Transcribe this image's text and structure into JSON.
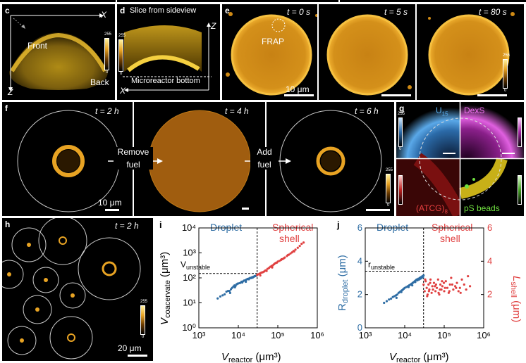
{
  "panels": {
    "c": {
      "label": "c",
      "axis_x": "X",
      "axis_z": "Z",
      "front": "Front",
      "back": "Back",
      "cbar_max": "255",
      "cbar_min": "0"
    },
    "d": {
      "label": "d",
      "title": "Slice from sideview",
      "axis_z": "Z",
      "axis_x": "X",
      "bottom_label": "Microreactor bottom",
      "cbar_max": "255",
      "cbar_min": "0"
    },
    "e": {
      "label": "e",
      "t0": "t = 0 s",
      "t5": "t = 5 s",
      "t80": "t = 80 s",
      "frap": "FRAP",
      "scale": "10 μm",
      "cbar_max": "255",
      "cbar_min": "0"
    },
    "f": {
      "label": "f",
      "t2": "t = 2 h",
      "t4": "t = 4 h",
      "t6": "t = 6 h",
      "arrow1_l1": "Remove",
      "arrow1_l2": "fuel",
      "arrow2_l1": "Add",
      "arrow2_l2": "fuel",
      "scale": "10 μm",
      "cbar_max": "255",
      "cbar_min": "0"
    },
    "g": {
      "label": "g",
      "u15": "U",
      "u15_sub": "15",
      "dexs": "DexS",
      "atcg": "(ATCG)",
      "atcg_sub": "8",
      "beads": "pS beads",
      "cbar_max": "255",
      "cbar_min": "0"
    },
    "h": {
      "label": "h",
      "time": "t = 2 h",
      "scale": "20 μm",
      "cbar_max": "255",
      "cbar_min": "0"
    }
  },
  "chart_data": [
    {
      "panel": "i",
      "type": "scatter",
      "xlabel": "V_reactor (μm³)",
      "ylabel": "V_coacervate (μm³)",
      "xscale": "log",
      "yscale": "log",
      "xlim": [
        1000,
        1000000
      ],
      "ylim": [
        1,
        10000
      ],
      "x_ticks": [
        "10³",
        "10⁴",
        "10⁵",
        "10⁶"
      ],
      "y_ticks": [
        "10⁰",
        "10¹",
        "10²",
        "10³",
        "10⁴"
      ],
      "annotation_unstable": "V_unstable",
      "threshold_x": 30000,
      "threshold_y": 150,
      "series": [
        {
          "name": "Droplet",
          "color": "#2e6da4",
          "x": [
            3000,
            3500,
            4000,
            4500,
            5000,
            5500,
            6000,
            6500,
            7000,
            7500,
            8000,
            8500,
            9000,
            9500,
            10000,
            11000,
            12000,
            13000,
            14000,
            15000,
            16000,
            17000,
            18000,
            19000,
            20000,
            22000,
            24000,
            26000,
            28000,
            30000,
            6200,
            8200,
            12500,
            15500,
            18500,
            21000,
            23000,
            25000,
            27000,
            29000
          ],
          "y": [
            15,
            18,
            20,
            22,
            28,
            30,
            30,
            35,
            40,
            45,
            50,
            48,
            55,
            58,
            60,
            62,
            70,
            72,
            78,
            80,
            85,
            90,
            92,
            95,
            100,
            105,
            110,
            118,
            122,
            130,
            25,
            42,
            65,
            70,
            88,
            98,
            102,
            112,
            118,
            125
          ]
        },
        {
          "name": "Spherical shell",
          "color": "#e04040",
          "x": [
            30000,
            32000,
            35000,
            38000,
            40000,
            42000,
            45000,
            48000,
            50000,
            55000,
            60000,
            65000,
            70000,
            75000,
            80000,
            85000,
            90000,
            100000,
            110000,
            120000,
            130000,
            140000,
            150000,
            170000,
            190000,
            210000,
            230000,
            250000,
            280000,
            320000,
            360000,
            400000,
            450000,
            36000,
            52000,
            72000,
            95000,
            125000,
            180000,
            260000
          ],
          "y": [
            130,
            140,
            150,
            160,
            165,
            170,
            180,
            195,
            200,
            230,
            250,
            280,
            300,
            320,
            350,
            380,
            400,
            450,
            480,
            520,
            560,
            600,
            650,
            750,
            850,
            950,
            1050,
            1200,
            1350,
            1600,
            1900,
            2300,
            2600,
            125,
            190,
            260,
            410,
            560,
            820,
            1150
          ]
        }
      ]
    },
    {
      "panel": "j",
      "type": "scatter",
      "xlabel": "V_reactor (μm³)",
      "ylabel_left": "R_droplet (μm)",
      "ylabel_right": "L_shell (μm)",
      "xscale": "log",
      "xlim": [
        1000,
        1000000
      ],
      "ylim": [
        0,
        6
      ],
      "x_ticks": [
        "10³",
        "10⁴",
        "10⁵",
        "10⁶"
      ],
      "y_ticks": [
        "0",
        "2",
        "4",
        "6"
      ],
      "annotation_unstable": "r_unstable",
      "threshold_x": 30000,
      "threshold_y": 3.4,
      "series": [
        {
          "name": "Droplet",
          "color": "#2e6da4",
          "x": [
            3000,
            3500,
            4000,
            4500,
            5000,
            5500,
            6000,
            6500,
            7000,
            7500,
            8000,
            8500,
            9000,
            9500,
            10000,
            11000,
            12000,
            13000,
            14000,
            15000,
            16000,
            17000,
            18000,
            19000,
            20000,
            22000,
            24000,
            26000,
            28000,
            30000,
            6200,
            8200,
            12500,
            15500,
            18500,
            21000,
            23000,
            25000,
            27000,
            29000
          ],
          "y": [
            1.5,
            1.6,
            1.7,
            1.75,
            1.85,
            1.9,
            1.95,
            2.0,
            2.1,
            2.15,
            2.2,
            2.25,
            2.3,
            2.35,
            2.4,
            2.45,
            2.5,
            2.55,
            2.6,
            2.65,
            2.7,
            2.75,
            2.8,
            2.85,
            2.9,
            2.95,
            3.0,
            3.05,
            3.1,
            3.15,
            1.8,
            2.15,
            2.45,
            2.55,
            2.75,
            2.85,
            2.9,
            2.95,
            3.0,
            3.05
          ]
        },
        {
          "name": "Spherical shell",
          "color": "#e04040",
          "x": [
            30000,
            32000,
            34000,
            36000,
            38000,
            40000,
            42000,
            45000,
            48000,
            50000,
            55000,
            60000,
            65000,
            70000,
            75000,
            80000,
            85000,
            90000,
            100000,
            110000,
            120000,
            130000,
            140000,
            150000,
            170000,
            190000,
            210000,
            230000,
            250000,
            280000,
            320000,
            360000,
            400000,
            450000,
            37000,
            44000,
            52000,
            62000,
            72000,
            88000,
            105000,
            135000,
            160000,
            200000,
            260000,
            33000,
            41000,
            58000,
            78000,
            98000
          ],
          "y": [
            2.6,
            2.2,
            2.8,
            2.4,
            2.0,
            2.6,
            2.3,
            2.9,
            2.1,
            2.5,
            2.7,
            2.2,
            2.4,
            2.9,
            2.0,
            2.6,
            2.3,
            2.5,
            2.2,
            2.8,
            2.4,
            2.1,
            2.6,
            3.0,
            2.3,
            2.5,
            2.7,
            2.2,
            2.4,
            2.9,
            2.6,
            2.3,
            3.1,
            2.5,
            1.9,
            2.7,
            2.3,
            2.6,
            2.1,
            2.8,
            2.4,
            2.2,
            2.6,
            2.4,
            2.1,
            2.9,
            2.2,
            2.5,
            2.3,
            2.7
          ]
        }
      ]
    }
  ],
  "chart_text": {
    "i_label": "i",
    "j_label": "j",
    "droplet": "Droplet",
    "shell_l1": "Spherical",
    "shell_l2": "shell",
    "i_vunstable": "V",
    "i_vunstable_sub": "unstable",
    "j_runstable": "r",
    "j_runstable_sub": "unstable",
    "i_ylabel": "V",
    "i_ylabel_sub": "coacervate",
    "i_ylabel_unit": " (μm³)",
    "x_label": "V",
    "x_label_sub": "reactor",
    "x_label_unit": " (μm³)",
    "j_ylabel": "R",
    "j_ylabel_sub": "droplet",
    "j_ylabel_unit": " (μm)",
    "j_ylabel_r": "L",
    "j_ylabel_r_sub": "shell",
    "j_ylabel_r_unit": " (μm)",
    "right_ticks": [
      "2",
      "4",
      "6"
    ]
  },
  "colors": {
    "droplet": "#2e6da4",
    "shell": "#e04040",
    "gold": "#e8a323"
  }
}
